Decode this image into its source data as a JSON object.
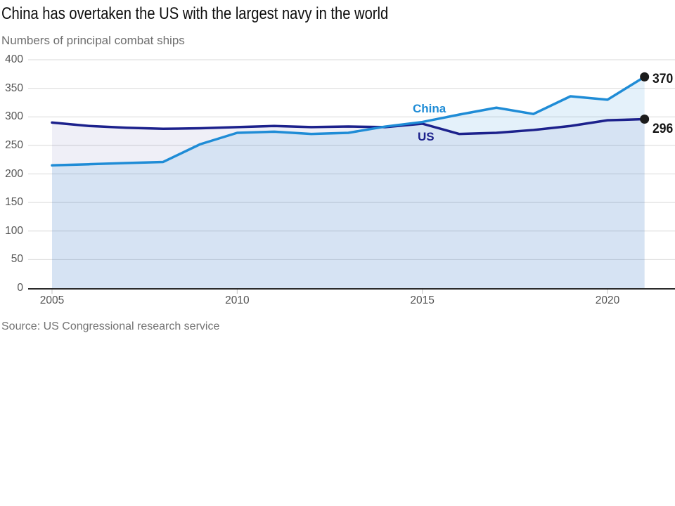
{
  "header": {
    "title": "China has overtaken the US with the largest navy in the world",
    "subtitle": "Numbers of principal combat ships"
  },
  "footer": {
    "source": "Source: US Congressional research service"
  },
  "chart_data": {
    "type": "line",
    "title": "China has overtaken the US with the largest navy in the world",
    "subtitle": "Numbers of principal combat ships",
    "x": [
      2005,
      2006,
      2007,
      2008,
      2009,
      2010,
      2011,
      2012,
      2013,
      2014,
      2015,
      2016,
      2017,
      2018,
      2019,
      2020,
      2021
    ],
    "xticks": [
      2005,
      2010,
      2015,
      2020
    ],
    "yticks": [
      0,
      50,
      100,
      150,
      200,
      250,
      300,
      350,
      400
    ],
    "ylim": [
      0,
      400
    ],
    "grid": true,
    "legend_position": "inline-labels",
    "area_fill": true,
    "series": [
      {
        "name": "China",
        "color": "#1f8cd6",
        "fill": "rgba(31,140,214,0.12)",
        "end_label": "370",
        "values": [
          215,
          217,
          219,
          221,
          252,
          272,
          274,
          270,
          272,
          283,
          291,
          304,
          316,
          305,
          336,
          330,
          370
        ]
      },
      {
        "name": "US",
        "color": "#1c218c",
        "fill": "rgba(28,33,140,0.07)",
        "end_label": "296",
        "values": [
          290,
          284,
          281,
          279,
          280,
          282,
          284,
          282,
          283,
          282,
          288,
          270,
          272,
          277,
          284,
          294,
          296
        ]
      }
    ],
    "colors": {
      "grid": "#d9d9d9",
      "axis": "#2b2b2b",
      "tick": "#c4c4c4",
      "dot": "#1c1c1c"
    }
  }
}
